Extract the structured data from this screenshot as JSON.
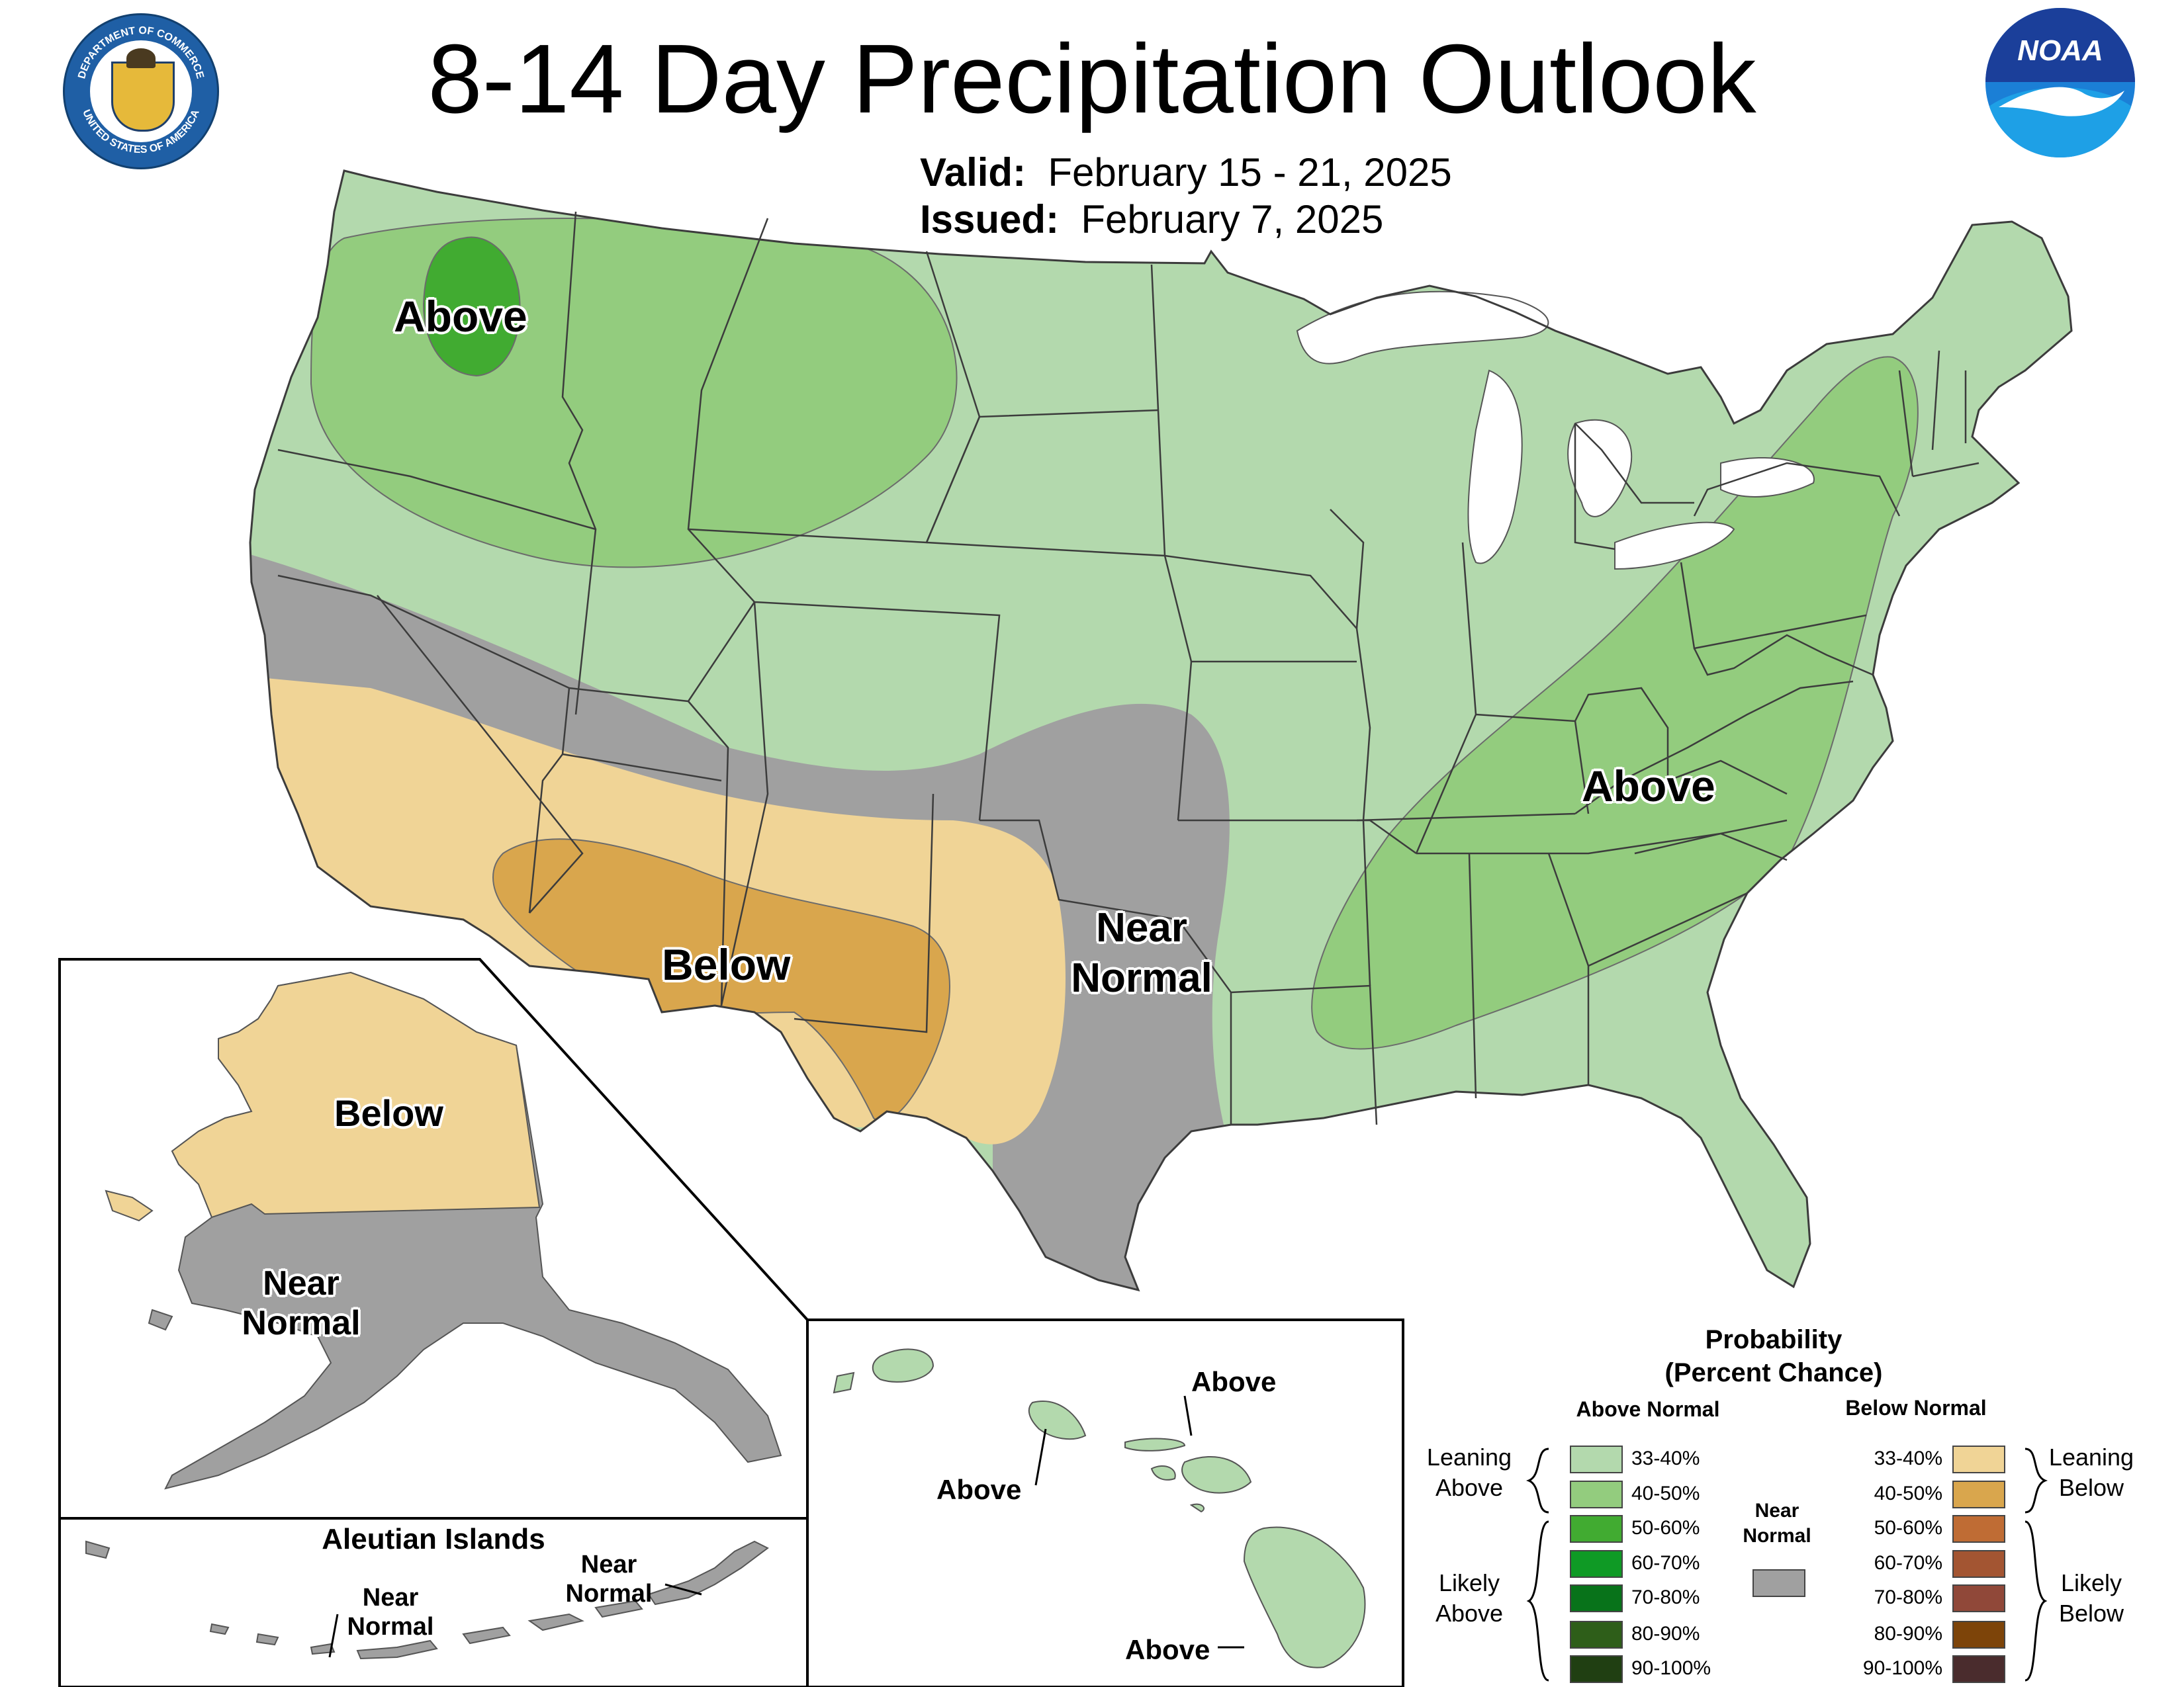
{
  "header": {
    "title": "8-14 Day Precipitation Outlook",
    "valid_label": "Valid:",
    "valid_value": "February 15 - 21, 2025",
    "issued_label": "Issued:",
    "issued_value": "February 7, 2025",
    "doc_seal_top_text": "DEPARTMENT OF COMMERCE",
    "doc_seal_bottom_text": "UNITED STATES OF AMERICA",
    "noaa_logo_text": "NOAA"
  },
  "map": {
    "conus_labels": {
      "northwest": "Above",
      "east": "Above",
      "southwest": "Below",
      "south_central_line1": "Near",
      "south_central_line2": "Normal"
    },
    "alaska_labels": {
      "north": "Below",
      "south_line1": "Near",
      "south_line2": "Normal"
    },
    "aleutian": {
      "title": "Aleutian Islands",
      "west_line1": "Near",
      "west_line2": "Normal",
      "east_line1": "Near",
      "east_line2": "Normal"
    },
    "hawaii_labels": {
      "maui": "Above",
      "oahu": "Above",
      "big_island": "Above"
    }
  },
  "colors": {
    "above_33_40": "#b3d9ad",
    "above_40_50": "#93cc7e",
    "above_50_60": "#41ab31",
    "above_60_70": "#0f9a25",
    "above_70_80": "#08731a",
    "above_80_90": "#2e5e19",
    "above_90_100": "#203f12",
    "below_33_40": "#f0d496",
    "below_40_50": "#d9a64d",
    "below_50_60": "#bf6c34",
    "below_60_70": "#a35532",
    "below_70_80": "#904839",
    "below_80_90": "#7d4409",
    "below_90_100": "#4a2c2d",
    "near_normal": "#a0a0a0",
    "state_border": "#3c3c3c"
  },
  "legend": {
    "title_line1": "Probability",
    "title_line2": "(Percent Chance)",
    "above_header": "Above Normal",
    "below_header": "Below Normal",
    "near_line1": "Near",
    "near_line2": "Normal",
    "leaning_above_line1": "Leaning",
    "leaning_above_line2": "Above",
    "likely_above_line1": "Likely",
    "likely_above_line2": "Above",
    "leaning_below_line1": "Leaning",
    "leaning_below_line2": "Below",
    "likely_below_line1": "Likely",
    "likely_below_line2": "Below",
    "above_ranges": [
      "33-40%",
      "40-50%",
      "50-60%",
      "60-70%",
      "70-80%",
      "80-90%",
      "90-100%"
    ],
    "below_ranges": [
      "33-40%",
      "40-50%",
      "50-60%",
      "60-70%",
      "70-80%",
      "80-90%",
      "90-100%"
    ]
  }
}
